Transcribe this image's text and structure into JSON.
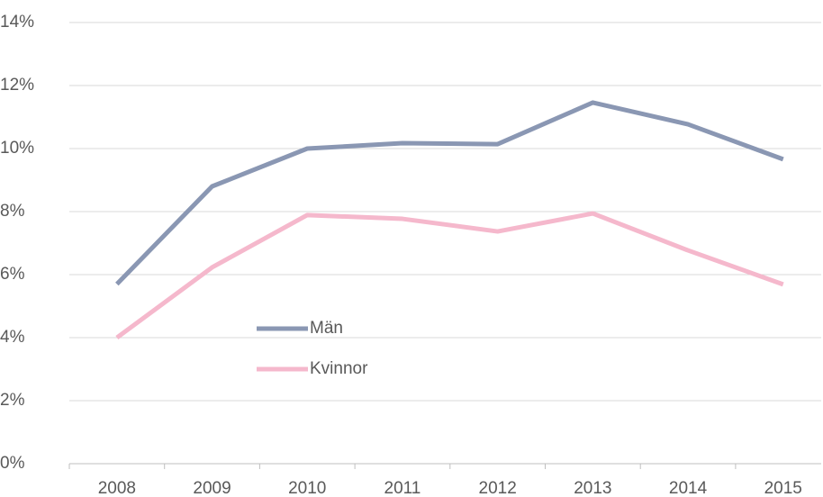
{
  "chart_data": {
    "type": "line",
    "categories": [
      "2008",
      "2009",
      "2010",
      "2011",
      "2012",
      "2013",
      "2014",
      "2015"
    ],
    "series": [
      {
        "name": "Män",
        "color": "#8a97b3",
        "values": [
          5.7,
          8.8,
          10.0,
          10.17,
          10.14,
          11.46,
          10.77,
          9.66
        ]
      },
      {
        "name": "Kvinnor",
        "color": "#f5b8cc",
        "values": [
          4.0,
          6.23,
          7.89,
          7.77,
          7.37,
          7.94,
          6.77,
          5.69
        ]
      }
    ],
    "ylim": [
      0,
      14
    ],
    "yticks": [
      {
        "value": 0,
        "label": "0%"
      },
      {
        "value": 2,
        "label": "2%"
      },
      {
        "value": 4,
        "label": "4%"
      },
      {
        "value": 6,
        "label": "6%"
      },
      {
        "value": 8,
        "label": "8%"
      },
      {
        "value": 10,
        "label": "10%"
      },
      {
        "value": 12,
        "label": "12%"
      },
      {
        "value": 14,
        "label": "14%"
      }
    ],
    "grid": true
  }
}
